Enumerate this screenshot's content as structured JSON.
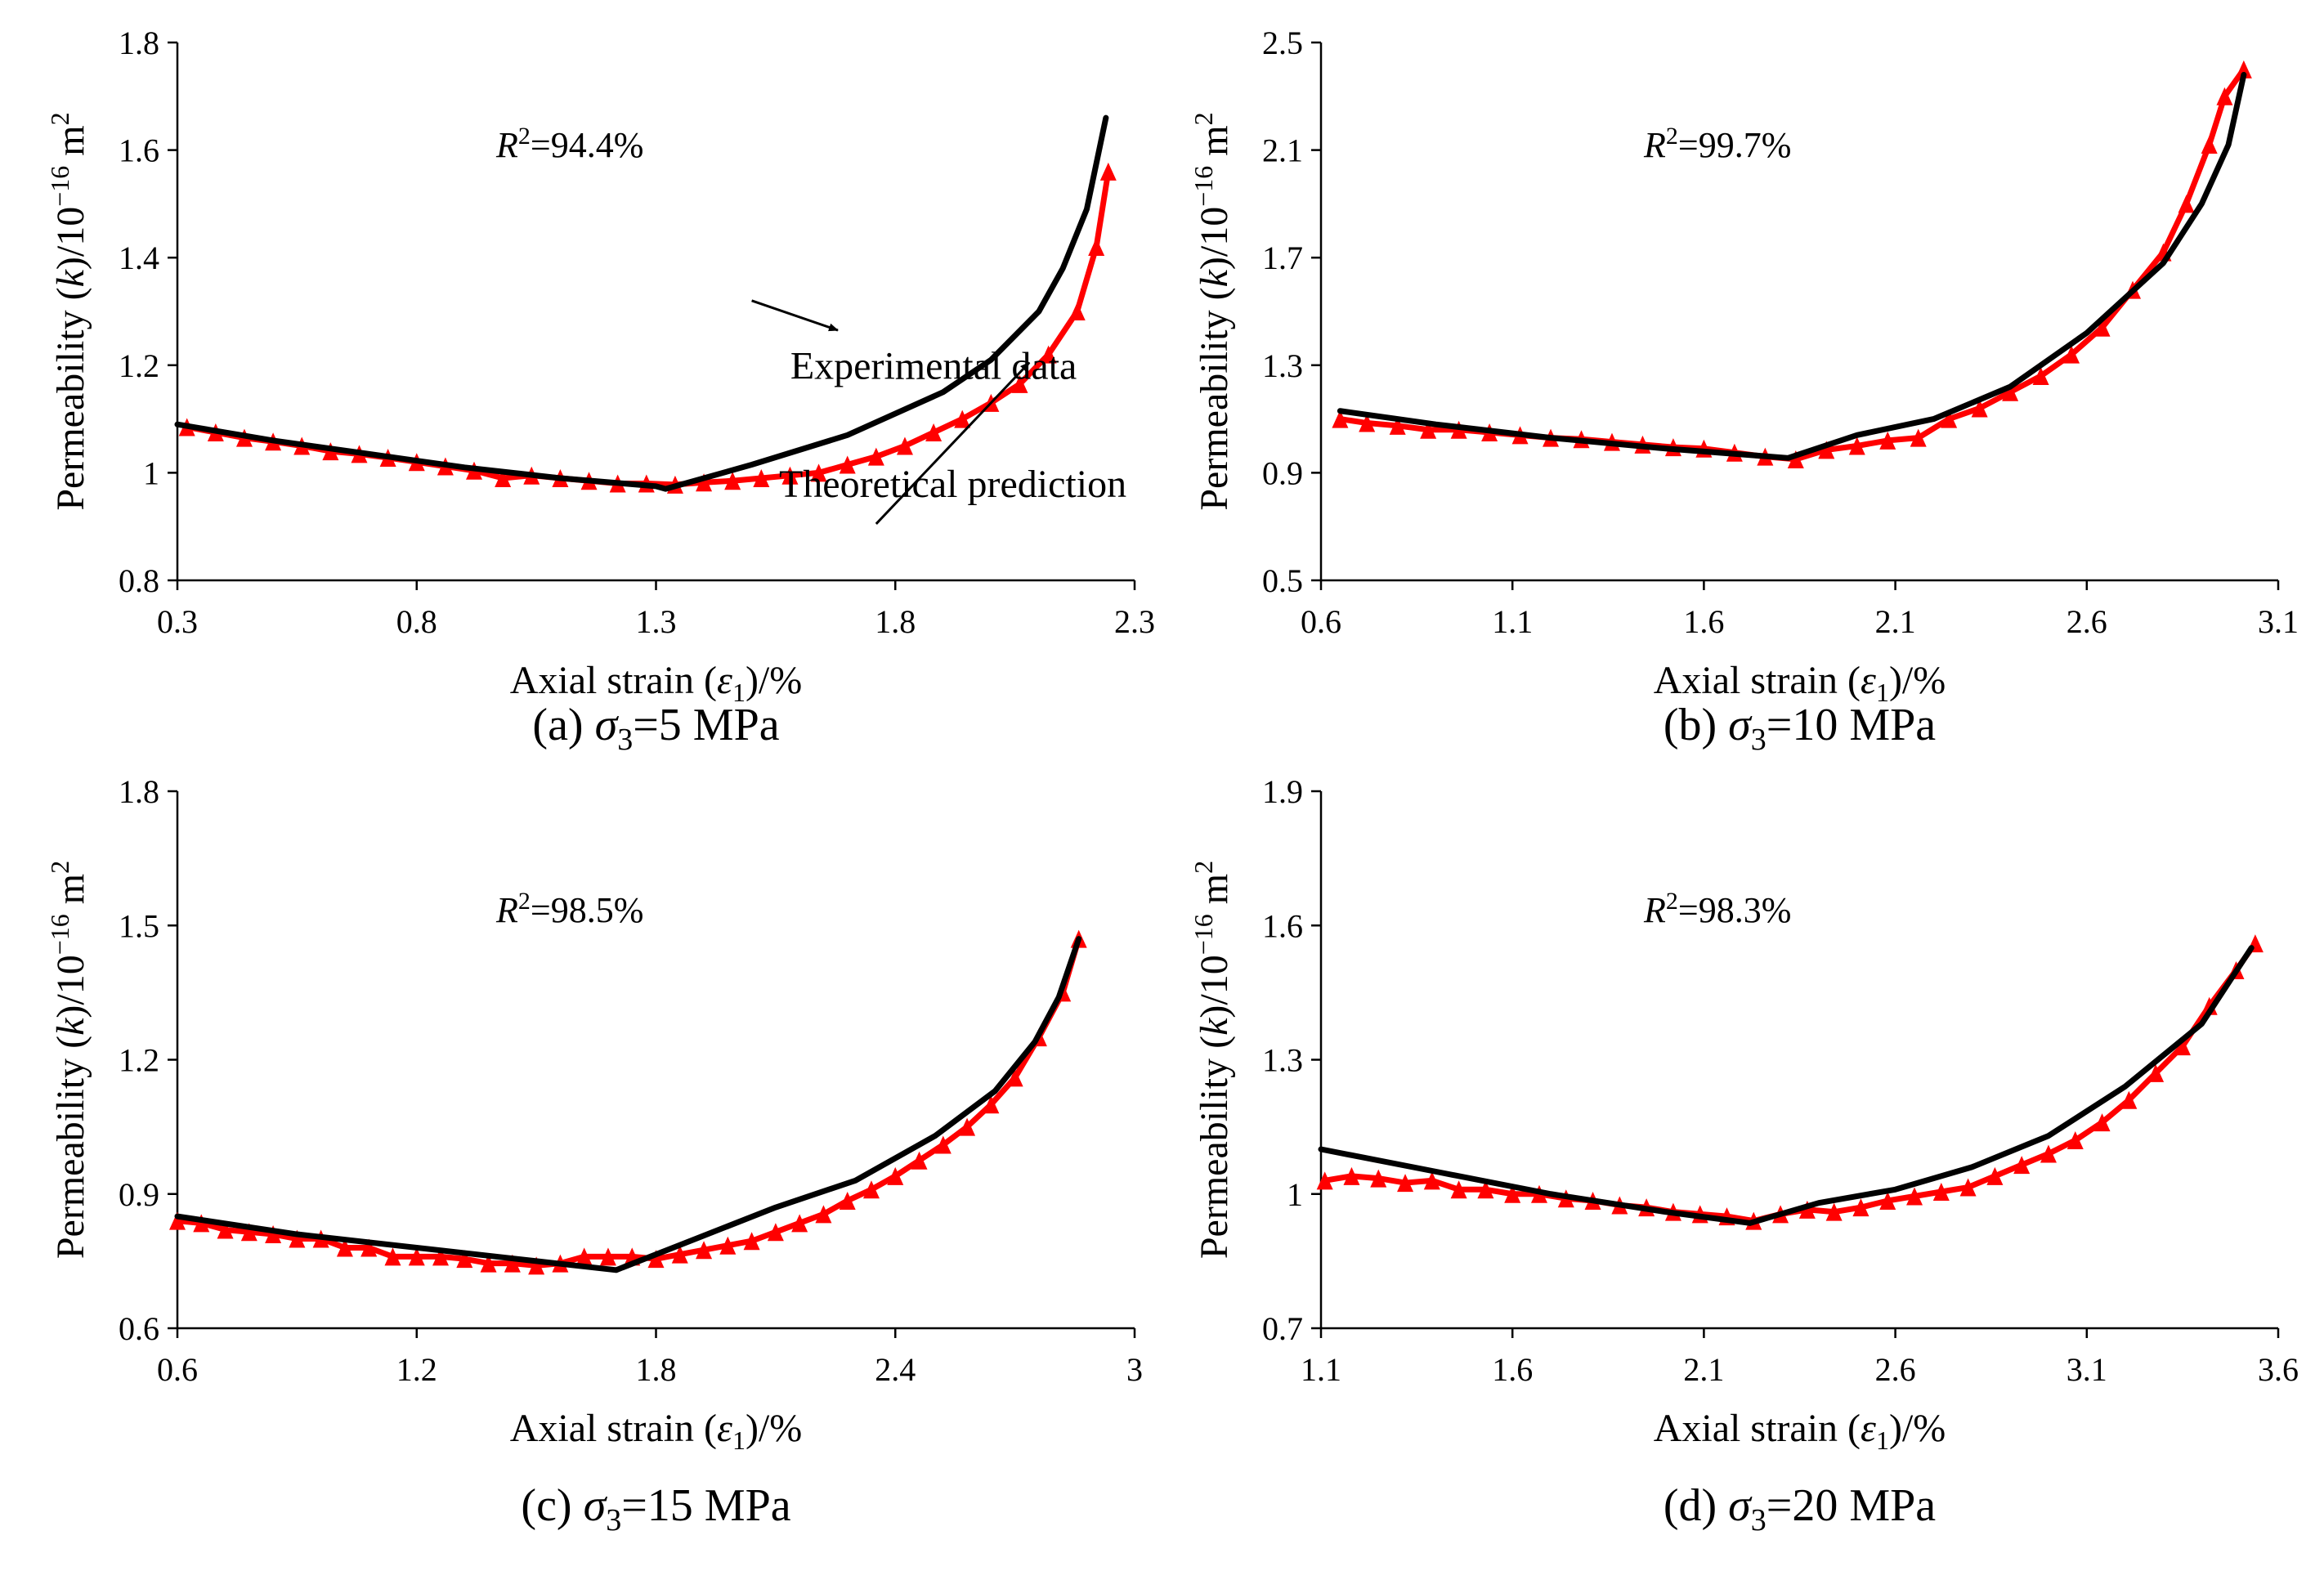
{
  "colors": {
    "experimental": "#000000",
    "theoretical": "#ff0000",
    "axis": "#000000"
  },
  "chart_data": [
    {
      "type": "line",
      "caption": {
        "prefix": "(a) ",
        "sym": "σ",
        "sub": "3",
        "suffix": "=5 MPa"
      },
      "xlabel": {
        "prefix": "Axial strain (",
        "sym": "ε",
        "sub": "1",
        "suffix": ")/%"
      },
      "ylabel": {
        "prefix": "Permeability (",
        "sym": "k",
        "mid": ")/10",
        "sup": "−16",
        "suffix": " m",
        "sup2": "2"
      },
      "r2": {
        "sym": "R",
        "sup": "2",
        "value": "=94.4%"
      },
      "xlim": [
        0.3,
        2.3
      ],
      "ylim": [
        0.8,
        1.8
      ],
      "xticks": [
        0.3,
        0.8,
        1.3,
        1.8,
        2.3
      ],
      "xtick_labels": [
        "0.3",
        "0.8",
        "1.3",
        "1.8",
        "2.3"
      ],
      "yticks": [
        0.8,
        1.0,
        1.2,
        1.4,
        1.6,
        1.8
      ],
      "ytick_labels": [
        "0.8",
        "1",
        "1.2",
        "1.4",
        "1.6",
        "1.8"
      ],
      "annotations": [
        {
          "text": "Experimental data",
          "x": 1.5,
          "y": 1.32,
          "ax": 1.68,
          "ay": 1.265,
          "tx": 1.88,
          "ty": 1.175
        },
        {
          "text": "Theoretical prediction",
          "x": 1.76,
          "y": 0.905,
          "ax": 2.08,
          "ay": 1.205,
          "tx": 1.92,
          "ty": 0.955
        }
      ],
      "series": [
        {
          "name": "Experimental data",
          "style": "line",
          "x": [
            0.3,
            0.5,
            0.7,
            0.9,
            1.1,
            1.3,
            1.32,
            1.5,
            1.7,
            1.9,
            2.0,
            2.1,
            2.15,
            2.2,
            2.24
          ],
          "y": [
            1.09,
            1.06,
            1.035,
            1.01,
            0.99,
            0.975,
            0.97,
            1.015,
            1.07,
            1.15,
            1.21,
            1.3,
            1.38,
            1.49,
            1.66
          ]
        },
        {
          "name": "Theoretical prediction",
          "style": "triangles",
          "x": [
            0.32,
            0.38,
            0.44,
            0.5,
            0.56,
            0.62,
            0.68,
            0.74,
            0.8,
            0.86,
            0.92,
            0.98,
            1.04,
            1.1,
            1.16,
            1.22,
            1.28,
            1.34,
            1.4,
            1.46,
            1.52,
            1.58,
            1.64,
            1.7,
            1.76,
            1.82,
            1.88,
            1.94,
            2.0,
            2.06,
            2.12,
            2.18,
            2.22,
            2.245
          ],
          "y": [
            1.085,
            1.075,
            1.065,
            1.058,
            1.05,
            1.04,
            1.035,
            1.028,
            1.02,
            1.012,
            1.004,
            0.99,
            0.995,
            0.99,
            0.985,
            0.98,
            0.98,
            0.978,
            0.982,
            0.985,
            0.99,
            0.995,
            1.0,
            1.015,
            1.03,
            1.05,
            1.075,
            1.1,
            1.13,
            1.165,
            1.22,
            1.3,
            1.42,
            1.56
          ]
        }
      ]
    },
    {
      "type": "line",
      "caption": {
        "prefix": "(b) ",
        "sym": "σ",
        "sub": "3",
        "suffix": "=10 MPa"
      },
      "xlabel": {
        "prefix": "Axial strain (",
        "sym": "ε",
        "sub": "1",
        "suffix": ")/%"
      },
      "ylabel": {
        "prefix": "Permeability (",
        "sym": "k",
        "mid": ")/10",
        "sup": "−16",
        "suffix": " m",
        "sup2": "2"
      },
      "r2": {
        "sym": "R",
        "sup": "2",
        "value": "=99.7%"
      },
      "xlim": [
        0.6,
        3.1
      ],
      "ylim": [
        0.5,
        2.5
      ],
      "xticks": [
        0.6,
        1.1,
        1.6,
        2.1,
        2.6,
        3.1
      ],
      "xtick_labels": [
        "0.6",
        "1.1",
        "1.6",
        "2.1",
        "2.6",
        "3.1"
      ],
      "yticks": [
        0.5,
        0.9,
        1.3,
        1.7,
        2.1,
        2.5
      ],
      "ytick_labels": [
        "0.5",
        "0.9",
        "1.3",
        "1.7",
        "2.1",
        "2.5"
      ],
      "annotations": [],
      "series": [
        {
          "name": "Experimental data",
          "style": "line",
          "x": [
            0.65,
            0.9,
            1.2,
            1.5,
            1.82,
            2.0,
            2.2,
            2.4,
            2.6,
            2.8,
            2.9,
            2.97,
            3.01
          ],
          "y": [
            1.13,
            1.08,
            1.03,
            0.99,
            0.955,
            1.04,
            1.1,
            1.22,
            1.42,
            1.68,
            1.9,
            2.12,
            2.38
          ]
        },
        {
          "name": "Theoretical prediction",
          "style": "triangles",
          "x": [
            0.65,
            0.72,
            0.8,
            0.88,
            0.96,
            1.04,
            1.12,
            1.2,
            1.28,
            1.36,
            1.44,
            1.52,
            1.6,
            1.68,
            1.76,
            1.84,
            1.92,
            2.0,
            2.08,
            2.16,
            2.24,
            2.32,
            2.4,
            2.48,
            2.56,
            2.64,
            2.72,
            2.8,
            2.86,
            2.92,
            2.96,
            3.01
          ],
          "y": [
            1.1,
            1.085,
            1.075,
            1.06,
            1.06,
            1.05,
            1.04,
            1.03,
            1.025,
            1.015,
            1.005,
            0.995,
            0.99,
            0.975,
            0.96,
            0.95,
            0.985,
            1.0,
            1.02,
            1.03,
            1.1,
            1.14,
            1.2,
            1.26,
            1.34,
            1.44,
            1.58,
            1.72,
            1.9,
            2.12,
            2.3,
            2.4
          ]
        }
      ]
    },
    {
      "type": "line",
      "caption": {
        "prefix": "(c) ",
        "sym": "σ",
        "sub": "3",
        "suffix": "=15 MPa"
      },
      "xlabel": {
        "prefix": "Axial strain (",
        "sym": "ε",
        "sub": "1",
        "suffix": ")/%"
      },
      "ylabel": {
        "prefix": "Permeability (",
        "sym": "k",
        "mid": ")/10",
        "sup": "−16",
        "suffix": " m",
        "sup2": "2"
      },
      "r2": {
        "sym": "R",
        "sup": "2",
        "value": "=98.5%"
      },
      "xlim": [
        0.6,
        3.0
      ],
      "ylim": [
        0.6,
        1.8
      ],
      "xticks": [
        0.6,
        1.2,
        1.8,
        2.4,
        3.0
      ],
      "xtick_labels": [
        "0.6",
        "1.2",
        "1.8",
        "2.4",
        "3"
      ],
      "yticks": [
        0.6,
        0.9,
        1.2,
        1.5,
        1.8
      ],
      "ytick_labels": [
        "0.6",
        "0.9",
        "1.2",
        "1.5",
        "1.8"
      ],
      "annotations": [],
      "series": [
        {
          "name": "Experimental data",
          "style": "line",
          "x": [
            0.6,
            0.9,
            1.2,
            1.5,
            1.7,
            1.9,
            2.1,
            2.3,
            2.5,
            2.65,
            2.75,
            2.81,
            2.86
          ],
          "y": [
            0.85,
            0.81,
            0.78,
            0.75,
            0.73,
            0.8,
            0.87,
            0.93,
            1.03,
            1.13,
            1.24,
            1.34,
            1.47
          ]
        },
        {
          "name": "Theoretical prediction",
          "style": "triangles",
          "x": [
            0.6,
            0.66,
            0.72,
            0.78,
            0.84,
            0.9,
            0.96,
            1.02,
            1.08,
            1.14,
            1.2,
            1.26,
            1.32,
            1.38,
            1.44,
            1.5,
            1.56,
            1.62,
            1.68,
            1.74,
            1.8,
            1.86,
            1.92,
            1.98,
            2.04,
            2.1,
            2.16,
            2.22,
            2.28,
            2.34,
            2.4,
            2.46,
            2.52,
            2.58,
            2.64,
            2.7,
            2.76,
            2.82,
            2.86
          ],
          "y": [
            0.84,
            0.835,
            0.82,
            0.815,
            0.81,
            0.8,
            0.8,
            0.78,
            0.78,
            0.76,
            0.76,
            0.76,
            0.755,
            0.745,
            0.745,
            0.74,
            0.745,
            0.76,
            0.76,
            0.76,
            0.755,
            0.765,
            0.775,
            0.785,
            0.795,
            0.815,
            0.835,
            0.855,
            0.885,
            0.91,
            0.94,
            0.975,
            1.01,
            1.05,
            1.1,
            1.16,
            1.25,
            1.35,
            1.47
          ]
        }
      ]
    },
    {
      "type": "line",
      "caption": {
        "prefix": "(d) ",
        "sym": "σ",
        "sub": "3",
        "suffix": "=20 MPa"
      },
      "xlabel": {
        "prefix": "Axial strain (",
        "sym": "ε",
        "sub": "1",
        "suffix": ")/%"
      },
      "ylabel": {
        "prefix": "Permeability (",
        "sym": "k",
        "mid": ")/10",
        "sup": "−16",
        "suffix": " m",
        "sup2": "2"
      },
      "r2": {
        "sym": "R",
        "sup": "2",
        "value": "=98.3%"
      },
      "xlim": [
        1.1,
        3.6
      ],
      "ylim": [
        0.7,
        1.9
      ],
      "xticks": [
        1.1,
        1.6,
        2.1,
        2.6,
        3.1,
        3.6
      ],
      "xtick_labels": [
        "1.1",
        "1.6",
        "2.1",
        "2.6",
        "3.1",
        "3.6"
      ],
      "yticks": [
        0.7,
        1.0,
        1.3,
        1.6,
        1.9
      ],
      "ytick_labels": [
        "0.7",
        "1",
        "1.3",
        "1.6",
        "1.9"
      ],
      "annotations": [],
      "series": [
        {
          "name": "Experimental data",
          "style": "line",
          "x": [
            1.1,
            1.4,
            1.7,
            2.0,
            2.22,
            2.4,
            2.6,
            2.8,
            3.0,
            3.2,
            3.4,
            3.53
          ],
          "y": [
            1.1,
            1.05,
            1.0,
            0.96,
            0.935,
            0.98,
            1.01,
            1.06,
            1.13,
            1.24,
            1.38,
            1.55
          ]
        },
        {
          "name": "Theoretical prediction",
          "style": "triangles",
          "x": [
            1.11,
            1.18,
            1.25,
            1.32,
            1.39,
            1.46,
            1.53,
            1.6,
            1.67,
            1.74,
            1.81,
            1.88,
            1.95,
            2.02,
            2.09,
            2.16,
            2.23,
            2.3,
            2.37,
            2.44,
            2.51,
            2.58,
            2.65,
            2.72,
            2.79,
            2.86,
            2.93,
            3.0,
            3.07,
            3.14,
            3.21,
            3.28,
            3.35,
            3.42,
            3.49,
            3.54
          ],
          "y": [
            1.03,
            1.04,
            1.035,
            1.025,
            1.03,
            1.01,
            1.01,
            1.0,
            1.0,
            0.99,
            0.985,
            0.975,
            0.97,
            0.96,
            0.955,
            0.95,
            0.94,
            0.955,
            0.965,
            0.96,
            0.97,
            0.985,
            0.995,
            1.005,
            1.015,
            1.04,
            1.065,
            1.09,
            1.12,
            1.16,
            1.21,
            1.27,
            1.33,
            1.42,
            1.5,
            1.56
          ]
        }
      ]
    }
  ]
}
